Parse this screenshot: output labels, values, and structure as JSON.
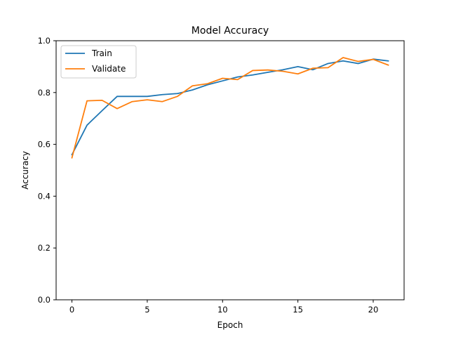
{
  "chart_data": {
    "type": "line",
    "title": "Model Accuracy",
    "xlabel": "Epoch",
    "ylabel": "Accuracy",
    "xlim": [
      -1.05,
      22.05
    ],
    "ylim": [
      0.0,
      1.0
    ],
    "xticks": [
      0,
      5,
      10,
      15,
      20
    ],
    "yticks": [
      0.0,
      0.2,
      0.4,
      0.6,
      0.8,
      1.0
    ],
    "xtick_labels": [
      "0",
      "5",
      "10",
      "15",
      "20"
    ],
    "ytick_labels": [
      "0.0",
      "0.2",
      "0.4",
      "0.6",
      "0.8",
      "1.0"
    ],
    "grid": false,
    "legend_position": "top-left",
    "x": [
      0,
      1,
      2,
      3,
      4,
      5,
      6,
      7,
      8,
      9,
      10,
      11,
      12,
      13,
      14,
      15,
      16,
      17,
      18,
      19,
      20,
      21
    ],
    "series": [
      {
        "name": "Train",
        "color": "#1f77b4",
        "values": [
          0.56,
          0.674,
          0.73,
          0.785,
          0.785,
          0.785,
          0.792,
          0.796,
          0.81,
          0.83,
          0.845,
          0.86,
          0.868,
          0.878,
          0.888,
          0.9,
          0.888,
          0.912,
          0.922,
          0.912,
          0.929,
          0.922
        ]
      },
      {
        "name": "Validate",
        "color": "#ff7f0e",
        "values": [
          0.548,
          0.768,
          0.77,
          0.738,
          0.765,
          0.772,
          0.765,
          0.785,
          0.826,
          0.834,
          0.855,
          0.85,
          0.885,
          0.887,
          0.882,
          0.872,
          0.894,
          0.896,
          0.935,
          0.92,
          0.928,
          0.906
        ]
      }
    ]
  }
}
